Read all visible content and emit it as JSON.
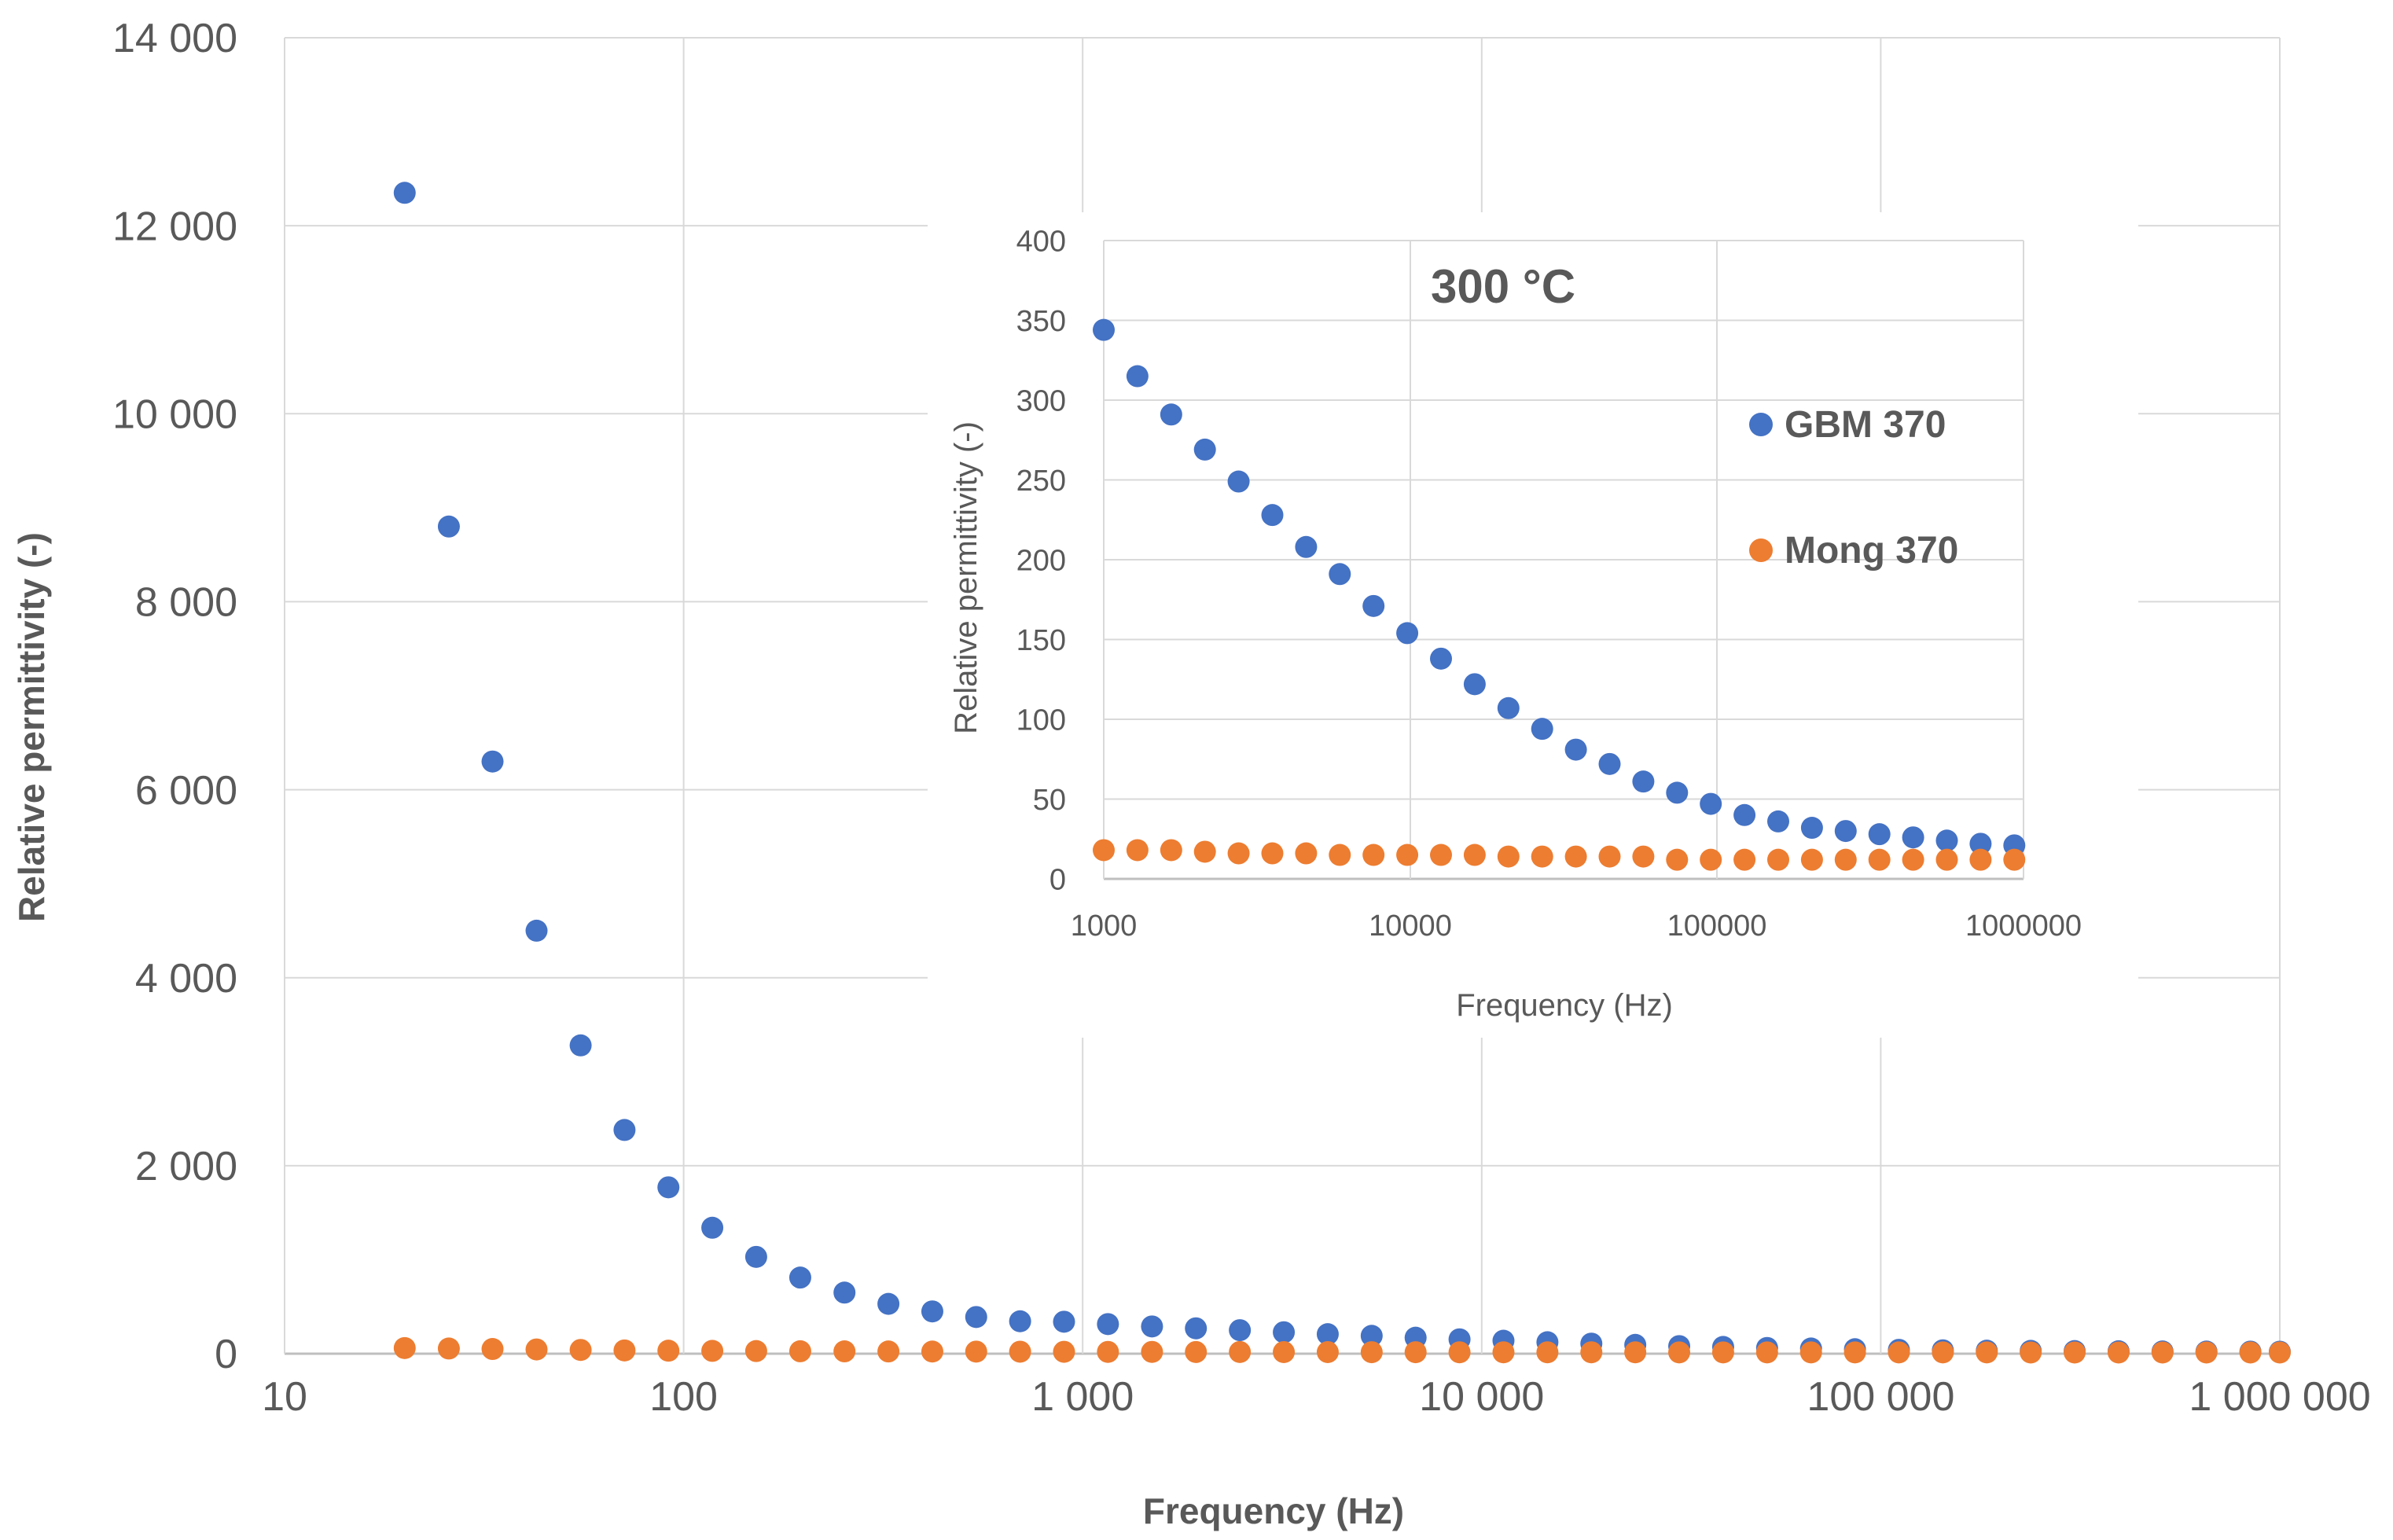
{
  "colors": {
    "gbm": "#4472C4",
    "mong": "#ED7D31",
    "grid": "#D9D9D9",
    "text": "#595959"
  },
  "chart_data": [
    {
      "type": "scatter",
      "name": "main",
      "xscale": "log",
      "xlim": [
        10,
        1000000
      ],
      "ylim": [
        0,
        14000
      ],
      "xlabel": "Frequency (Hz)",
      "ylabel": "Relative permittivity (-)",
      "xticks": [
        10,
        100,
        1000,
        10000,
        100000,
        1000000
      ],
      "xtick_labels": [
        "10",
        "100",
        "1 000",
        "10 000",
        "100 000",
        "1 000 000"
      ],
      "yticks": [
        0,
        2000,
        4000,
        6000,
        8000,
        10000,
        12000,
        14000
      ],
      "ytick_labels": [
        "0",
        "2 000",
        "4 000",
        "6 000",
        "8 000",
        "10 000",
        "12 000",
        "14 000"
      ],
      "grid": true,
      "series": [
        {
          "name": "GBM 370",
          "x": [
            20,
            25.8,
            33.2,
            42.8,
            55.2,
            71.1,
            91.6,
            118,
            152,
            196,
            253,
            326,
            420,
            541,
            697,
            898,
            1157,
            1492,
            1922,
            2477,
            3192,
            4113,
            5300,
            6829,
            8799,
            11338,
            14611,
            18826,
            24258,
            31258,
            40278,
            51901,
            66878,
            86177,
            111043,
            143087,
            184376,
            237580,
            306138,
            394479,
            508317,
            655003,
            844016,
            1000000
          ],
          "y": [
            12350,
            8800,
            6300,
            4500,
            3280,
            2380,
            1770,
            1340,
            1030,
            810,
            650,
            530,
            450,
            390,
            345,
            340,
            315,
            290,
            270,
            250,
            228,
            208,
            190,
            170,
            153,
            138,
            122,
            107,
            94,
            81,
            72,
            61,
            55,
            48,
            41,
            36,
            32,
            30,
            28,
            26,
            24,
            23,
            22,
            21
          ]
        },
        {
          "name": "Mong 370",
          "x": [
            20,
            25.8,
            33.2,
            42.8,
            55.2,
            71.1,
            91.6,
            118,
            152,
            196,
            253,
            326,
            420,
            541,
            697,
            898,
            1157,
            1492,
            1922,
            2477,
            3192,
            4113,
            5300,
            6829,
            8799,
            11338,
            14611,
            18826,
            24258,
            31258,
            40278,
            51901,
            66878,
            86177,
            111043,
            143087,
            184376,
            237580,
            306138,
            394479,
            508317,
            655003,
            844016,
            1000000
          ],
          "y": [
            60,
            55,
            50,
            45,
            40,
            35,
            32,
            30,
            28,
            26,
            25,
            24,
            23,
            22,
            21,
            20,
            19,
            19,
            18,
            18,
            17,
            17,
            16,
            16,
            15,
            15,
            15,
            15,
            15,
            14,
            14,
            14,
            14,
            14,
            14,
            14,
            14,
            13,
            13,
            13,
            13,
            13,
            13,
            13
          ]
        }
      ]
    },
    {
      "type": "scatter",
      "name": "inset",
      "title": "300 °C",
      "xscale": "log",
      "xlim": [
        1000,
        1000000
      ],
      "ylim": [
        0,
        400
      ],
      "xlabel": "Frequency (Hz)",
      "ylabel": "Relative permittivity (-)",
      "xticks": [
        1000,
        10000,
        100000,
        1000000
      ],
      "xtick_labels": [
        "1000",
        "10000",
        "100000",
        "1000000"
      ],
      "yticks": [
        0,
        50,
        100,
        150,
        200,
        250,
        300,
        350,
        400
      ],
      "ytick_labels": [
        "0",
        "50",
        "100",
        "150",
        "200",
        "250",
        "300",
        "350",
        "400"
      ],
      "grid": true,
      "legend": {
        "placement": "right",
        "entries": [
          "GBM 370",
          "Mong 370"
        ]
      },
      "series": [
        {
          "name": "GBM 370",
          "x": [
            1000,
            1288,
            1660,
            2138,
            2754,
            3548,
            4571,
            5888,
            7586,
            9772,
            12589,
            16218,
            20893,
            26915,
            34674,
            44668,
            57544,
            74131,
            95499,
            123027,
            158489,
            204174,
            263027,
            338844,
            436516,
            562341,
            724436,
            933254
          ],
          "y": [
            344,
            315,
            291,
            269,
            249,
            228,
            208,
            191,
            171,
            154,
            138,
            122,
            107,
            94,
            81,
            72,
            61,
            54,
            47,
            40,
            36,
            32,
            30,
            28,
            26,
            24,
            22,
            21
          ]
        },
        {
          "name": "Mong 370",
          "x": [
            1000,
            1288,
            1660,
            2138,
            2754,
            3548,
            4571,
            5888,
            7586,
            9772,
            12589,
            16218,
            20893,
            26915,
            34674,
            44668,
            57544,
            74131,
            95499,
            123027,
            158489,
            204174,
            263027,
            338844,
            436516,
            562341,
            724436,
            933254
          ],
          "y": [
            18,
            18,
            18,
            17,
            16,
            16,
            16,
            15,
            15,
            15,
            15,
            15,
            14,
            14,
            14,
            14,
            14,
            12,
            12,
            12,
            12,
            12,
            12,
            12,
            12,
            12,
            12,
            12
          ]
        }
      ]
    }
  ]
}
